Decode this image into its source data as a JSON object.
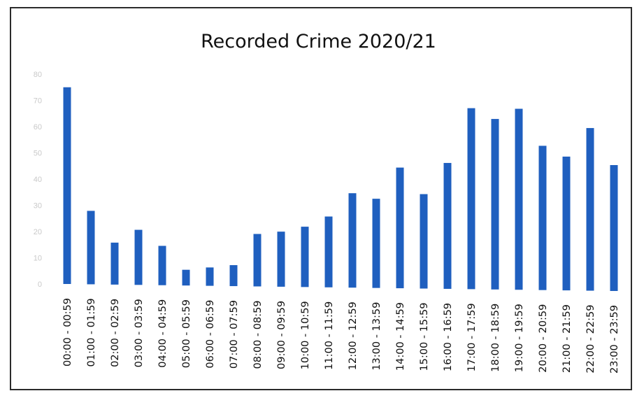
{
  "chart_data": {
    "type": "bar",
    "title": "Recorded Crime 2020/21",
    "xlabel": "",
    "ylabel": "",
    "ylim": [
      0,
      80
    ],
    "yticks": [
      0,
      10,
      20,
      30,
      40,
      50,
      60,
      70,
      80
    ],
    "grid": false,
    "legend": "none",
    "bar_color": "#1f5fbf",
    "categories": [
      "00:00 - 00:59",
      "01:00 - 01:59",
      "02:00 - 02:59",
      "03:00 - 03:59",
      "04:00 - 04:59",
      "05:00 - 05:59",
      "06:00 - 06:59",
      "07:00 - 07:59",
      "08:00 - 08:59",
      "09:00 - 09:59",
      "10:00 - 10:59",
      "11:00 - 11:59",
      "12:00 - 12:59",
      "13:00 - 13:59",
      "14:00 - 14:59",
      "15:00 - 15:59",
      "16:00 - 16:59",
      "17:00 - 17:59",
      "18:00 - 18:59",
      "19:00 - 19:59",
      "20:00 - 20:59",
      "21:00 - 21:59",
      "22:00 - 22:59",
      "23:00 - 23:59"
    ],
    "values": [
      75,
      28,
      16,
      21,
      15,
      6,
      7,
      8,
      20,
      21,
      23,
      27,
      36,
      34,
      46,
      36,
      48,
      69,
      65,
      69,
      55,
      51,
      62,
      48
    ]
  }
}
